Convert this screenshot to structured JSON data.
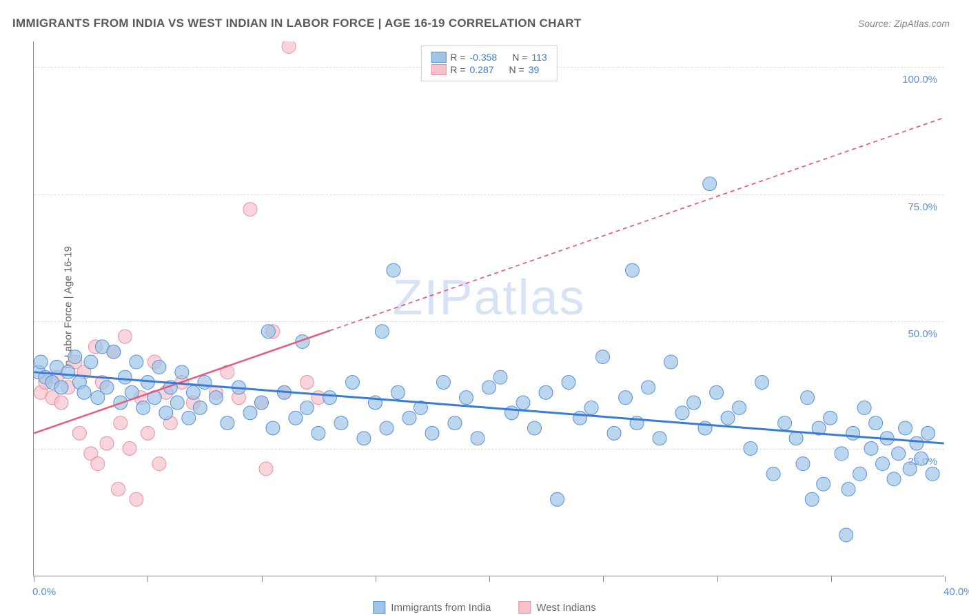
{
  "chart": {
    "type": "scatter",
    "title": "IMMIGRANTS FROM INDIA VS WEST INDIAN IN LABOR FORCE | AGE 16-19 CORRELATION CHART",
    "source_label": "Source:",
    "source_name": "ZipAtlas.com",
    "ylabel": "In Labor Force | Age 16-19",
    "watermark": "ZIPatlas",
    "background_color": "#ffffff",
    "grid_color": "#dddddd",
    "axis_color": "#888888",
    "xlim": [
      0,
      40
    ],
    "ylim": [
      0,
      105
    ],
    "x_ticks": [
      0,
      5,
      10,
      15,
      20,
      25,
      30,
      35,
      40
    ],
    "x_tick_labels": {
      "0": "0.0%",
      "40": "40.0%"
    },
    "y_ticks": [
      25,
      50,
      75,
      100
    ],
    "y_tick_labels": {
      "25": "25.0%",
      "50": "50.0%",
      "75": "75.0%",
      "100": "100.0%"
    },
    "tick_label_color": "#5a8fd6",
    "title_fontsize": 17,
    "label_fontsize": 15,
    "series": [
      {
        "name": "Immigrants from India",
        "color": "#9ec5e8",
        "stroke": "#5a8fd6",
        "line_color": "#3a7bd5",
        "marker_radius": 10,
        "marker_opacity": 0.7,
        "R": "-0.358",
        "N": "113",
        "trend": {
          "x1": 0,
          "y1": 40,
          "x2": 40,
          "y2": 26,
          "solid_to_x": 40,
          "line_width": 3
        },
        "points": [
          [
            0.2,
            40
          ],
          [
            0.3,
            42
          ],
          [
            0.5,
            39
          ],
          [
            0.8,
            38
          ],
          [
            1.0,
            41
          ],
          [
            1.2,
            37
          ],
          [
            1.5,
            40
          ],
          [
            1.8,
            43
          ],
          [
            2.0,
            38
          ],
          [
            2.2,
            36
          ],
          [
            2.5,
            42
          ],
          [
            2.8,
            35
          ],
          [
            3.0,
            45
          ],
          [
            3.2,
            37
          ],
          [
            3.5,
            44
          ],
          [
            3.8,
            34
          ],
          [
            4.0,
            39
          ],
          [
            4.3,
            36
          ],
          [
            4.5,
            42
          ],
          [
            4.8,
            33
          ],
          [
            5.0,
            38
          ],
          [
            5.3,
            35
          ],
          [
            5.5,
            41
          ],
          [
            5.8,
            32
          ],
          [
            6.0,
            37
          ],
          [
            6.3,
            34
          ],
          [
            6.5,
            40
          ],
          [
            6.8,
            31
          ],
          [
            7.0,
            36
          ],
          [
            7.3,
            33
          ],
          [
            7.5,
            38
          ],
          [
            8.0,
            35
          ],
          [
            8.5,
            30
          ],
          [
            9.0,
            37
          ],
          [
            9.5,
            32
          ],
          [
            10.0,
            34
          ],
          [
            10.3,
            48
          ],
          [
            10.5,
            29
          ],
          [
            11.0,
            36
          ],
          [
            11.5,
            31
          ],
          [
            11.8,
            46
          ],
          [
            12.0,
            33
          ],
          [
            12.5,
            28
          ],
          [
            13.0,
            35
          ],
          [
            13.5,
            30
          ],
          [
            14.0,
            38
          ],
          [
            14.5,
            27
          ],
          [
            15.0,
            34
          ],
          [
            15.3,
            48
          ],
          [
            15.5,
            29
          ],
          [
            15.8,
            60
          ],
          [
            16.0,
            36
          ],
          [
            16.5,
            31
          ],
          [
            17.0,
            33
          ],
          [
            17.5,
            28
          ],
          [
            18.0,
            38
          ],
          [
            18.5,
            30
          ],
          [
            19.0,
            35
          ],
          [
            19.5,
            27
          ],
          [
            20.0,
            37
          ],
          [
            20.5,
            39
          ],
          [
            21.0,
            32
          ],
          [
            21.5,
            34
          ],
          [
            22.0,
            29
          ],
          [
            22.5,
            36
          ],
          [
            23.0,
            15
          ],
          [
            23.5,
            38
          ],
          [
            24.0,
            31
          ],
          [
            24.5,
            33
          ],
          [
            25.0,
            43
          ],
          [
            25.5,
            28
          ],
          [
            26.0,
            35
          ],
          [
            26.3,
            60
          ],
          [
            26.5,
            30
          ],
          [
            27.0,
            37
          ],
          [
            27.5,
            27
          ],
          [
            28.0,
            42
          ],
          [
            28.5,
            32
          ],
          [
            29.0,
            34
          ],
          [
            29.5,
            29
          ],
          [
            29.7,
            77
          ],
          [
            30.0,
            36
          ],
          [
            30.5,
            31
          ],
          [
            31.0,
            33
          ],
          [
            31.5,
            25
          ],
          [
            32.0,
            38
          ],
          [
            32.5,
            20
          ],
          [
            33.0,
            30
          ],
          [
            33.5,
            27
          ],
          [
            33.8,
            22
          ],
          [
            34.0,
            35
          ],
          [
            34.5,
            29
          ],
          [
            34.7,
            18
          ],
          [
            35.0,
            31
          ],
          [
            35.5,
            24
          ],
          [
            35.7,
            8
          ],
          [
            36.0,
            28
          ],
          [
            36.3,
            20
          ],
          [
            36.5,
            33
          ],
          [
            36.8,
            25
          ],
          [
            37.0,
            30
          ],
          [
            37.3,
            22
          ],
          [
            37.5,
            27
          ],
          [
            38.0,
            24
          ],
          [
            38.3,
            29
          ],
          [
            38.5,
            21
          ],
          [
            38.8,
            26
          ],
          [
            39.0,
            23
          ],
          [
            39.3,
            28
          ],
          [
            39.5,
            20
          ],
          [
            34.2,
            15
          ],
          [
            35.8,
            17
          ],
          [
            37.8,
            19
          ]
        ]
      },
      {
        "name": "West Indians",
        "color": "#f5c2cc",
        "stroke": "#e691a0",
        "line_color": "#e65a7a",
        "marker_radius": 10,
        "marker_opacity": 0.7,
        "R": "0.287",
        "N": "39",
        "trend": {
          "x1": 0,
          "y1": 28,
          "x2": 40,
          "y2": 90,
          "solid_to_x": 13,
          "line_width": 2.5
        },
        "points": [
          [
            0.3,
            36
          ],
          [
            0.5,
            38
          ],
          [
            0.8,
            35
          ],
          [
            1.0,
            39
          ],
          [
            1.2,
            34
          ],
          [
            1.5,
            37
          ],
          [
            1.8,
            42
          ],
          [
            2.0,
            28
          ],
          [
            2.2,
            40
          ],
          [
            2.5,
            24
          ],
          [
            2.7,
            45
          ],
          [
            2.8,
            22
          ],
          [
            3.0,
            38
          ],
          [
            3.2,
            26
          ],
          [
            3.5,
            44
          ],
          [
            3.7,
            17
          ],
          [
            3.8,
            30
          ],
          [
            4.0,
            47
          ],
          [
            4.2,
            25
          ],
          [
            4.5,
            15
          ],
          [
            4.7,
            35
          ],
          [
            5.0,
            28
          ],
          [
            5.3,
            42
          ],
          [
            5.5,
            22
          ],
          [
            5.8,
            36
          ],
          [
            6.0,
            30
          ],
          [
            6.5,
            38
          ],
          [
            7.0,
            34
          ],
          [
            8.0,
            36
          ],
          [
            8.5,
            40
          ],
          [
            9.0,
            35
          ],
          [
            9.5,
            72
          ],
          [
            10.0,
            34
          ],
          [
            10.2,
            21
          ],
          [
            10.5,
            48
          ],
          [
            11.0,
            36
          ],
          [
            11.2,
            104
          ],
          [
            12.0,
            38
          ],
          [
            12.5,
            35
          ]
        ]
      }
    ],
    "legend_bottom": [
      {
        "label": "Immigrants from India",
        "color": "#9ec5e8",
        "stroke": "#5a8fd6"
      },
      {
        "label": "West Indians",
        "color": "#f5c2cc",
        "stroke": "#e691a0"
      }
    ]
  }
}
